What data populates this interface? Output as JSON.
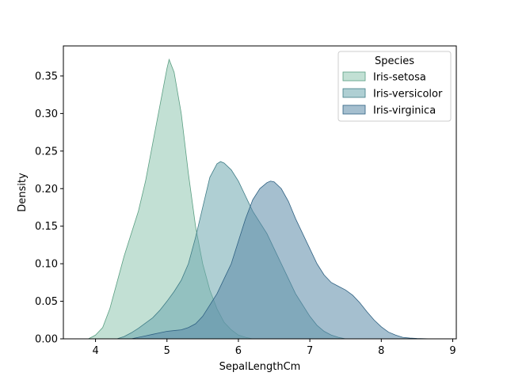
{
  "chart_data": {
    "type": "area",
    "subtype": "kde",
    "title": "",
    "xlabel": "SepalLengthCm",
    "ylabel": "Density",
    "xlim": [
      3.55,
      9.05
    ],
    "ylim": [
      0,
      0.39
    ],
    "xticks": [
      4,
      5,
      6,
      7,
      8,
      9
    ],
    "yticks": [
      0.0,
      0.05,
      0.1,
      0.15,
      0.2,
      0.25,
      0.3,
      0.35
    ],
    "ytick_labels": [
      "0.00",
      "0.05",
      "0.10",
      "0.15",
      "0.20",
      "0.25",
      "0.30",
      "0.35"
    ],
    "grid": false,
    "legend": {
      "title": "Species",
      "placement": "top-right"
    },
    "series": [
      {
        "name": "Iris-setosa",
        "color": "#8fc7b0",
        "edge": "#5a9e82",
        "x": [
          3.9,
          4.0,
          4.1,
          4.2,
          4.3,
          4.4,
          4.5,
          4.6,
          4.7,
          4.8,
          4.9,
          5.0,
          5.03,
          5.1,
          5.2,
          5.3,
          5.4,
          5.5,
          5.6,
          5.7,
          5.8,
          5.9,
          6.0,
          6.1,
          6.2
        ],
        "y": [
          0.0,
          0.005,
          0.015,
          0.04,
          0.075,
          0.11,
          0.14,
          0.17,
          0.21,
          0.26,
          0.31,
          0.36,
          0.372,
          0.355,
          0.3,
          0.22,
          0.15,
          0.1,
          0.065,
          0.04,
          0.022,
          0.012,
          0.005,
          0.002,
          0.0
        ]
      },
      {
        "name": "Iris-versicolor",
        "color": "#6ea7ae",
        "edge": "#3f7c86",
        "x": [
          4.3,
          4.4,
          4.5,
          4.6,
          4.7,
          4.8,
          4.9,
          5.0,
          5.1,
          5.2,
          5.3,
          5.4,
          5.5,
          5.6,
          5.7,
          5.75,
          5.8,
          5.9,
          6.0,
          6.1,
          6.2,
          6.3,
          6.4,
          6.5,
          6.6,
          6.7,
          6.8,
          6.9,
          7.0,
          7.1,
          7.2,
          7.3,
          7.4,
          7.5
        ],
        "y": [
          0.0,
          0.003,
          0.008,
          0.014,
          0.021,
          0.028,
          0.038,
          0.05,
          0.063,
          0.078,
          0.1,
          0.135,
          0.175,
          0.215,
          0.233,
          0.236,
          0.234,
          0.225,
          0.21,
          0.19,
          0.17,
          0.155,
          0.14,
          0.12,
          0.1,
          0.08,
          0.06,
          0.045,
          0.03,
          0.018,
          0.01,
          0.005,
          0.002,
          0.0
        ]
      },
      {
        "name": "Iris-virginica",
        "color": "#5b8aa8",
        "edge": "#2f6182",
        "x": [
          4.5,
          4.6,
          4.7,
          4.8,
          4.9,
          5.0,
          5.1,
          5.2,
          5.3,
          5.4,
          5.5,
          5.6,
          5.7,
          5.8,
          5.9,
          6.0,
          6.1,
          6.2,
          6.3,
          6.4,
          6.45,
          6.5,
          6.6,
          6.7,
          6.8,
          6.9,
          7.0,
          7.1,
          7.2,
          7.3,
          7.4,
          7.5,
          7.6,
          7.7,
          7.8,
          7.9,
          8.0,
          8.1,
          8.2,
          8.3,
          8.4,
          8.5,
          8.6,
          8.7
        ],
        "y": [
          0.0,
          0.002,
          0.004,
          0.006,
          0.008,
          0.01,
          0.011,
          0.012,
          0.015,
          0.02,
          0.03,
          0.045,
          0.06,
          0.08,
          0.1,
          0.13,
          0.16,
          0.185,
          0.2,
          0.208,
          0.21,
          0.209,
          0.2,
          0.183,
          0.16,
          0.14,
          0.12,
          0.1,
          0.085,
          0.075,
          0.07,
          0.065,
          0.058,
          0.048,
          0.036,
          0.025,
          0.016,
          0.009,
          0.005,
          0.002,
          0.001,
          0.0005,
          0.0002,
          0.0
        ]
      }
    ]
  }
}
